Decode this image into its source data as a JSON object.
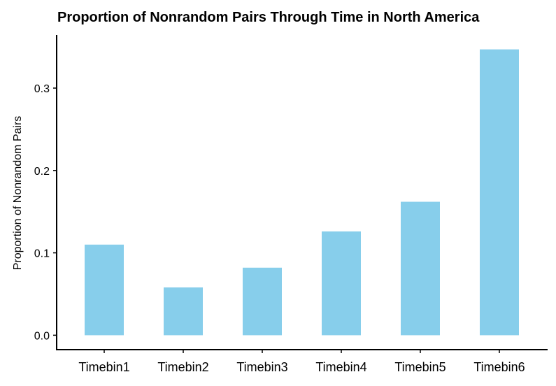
{
  "chart_data": {
    "type": "bar",
    "title": "Proportion of Nonrandom Pairs Through Time in North America",
    "xlabel": "",
    "ylabel": "Proportion of Nonrandom Pairs",
    "categories": [
      "Timebin1",
      "Timebin2",
      "Timebin3",
      "Timebin4",
      "Timebin5",
      "Timebin6"
    ],
    "values": [
      0.11,
      0.058,
      0.082,
      0.126,
      0.162,
      0.347
    ],
    "ylim": [
      -0.0175,
      0.3645
    ],
    "yticks": [
      0.0,
      0.1,
      0.2,
      0.3
    ],
    "ytick_labels": [
      "0.0",
      "0.1",
      "0.2",
      "0.3"
    ],
    "bar_color": "#87CEEB",
    "grid": false,
    "legend": "none"
  }
}
